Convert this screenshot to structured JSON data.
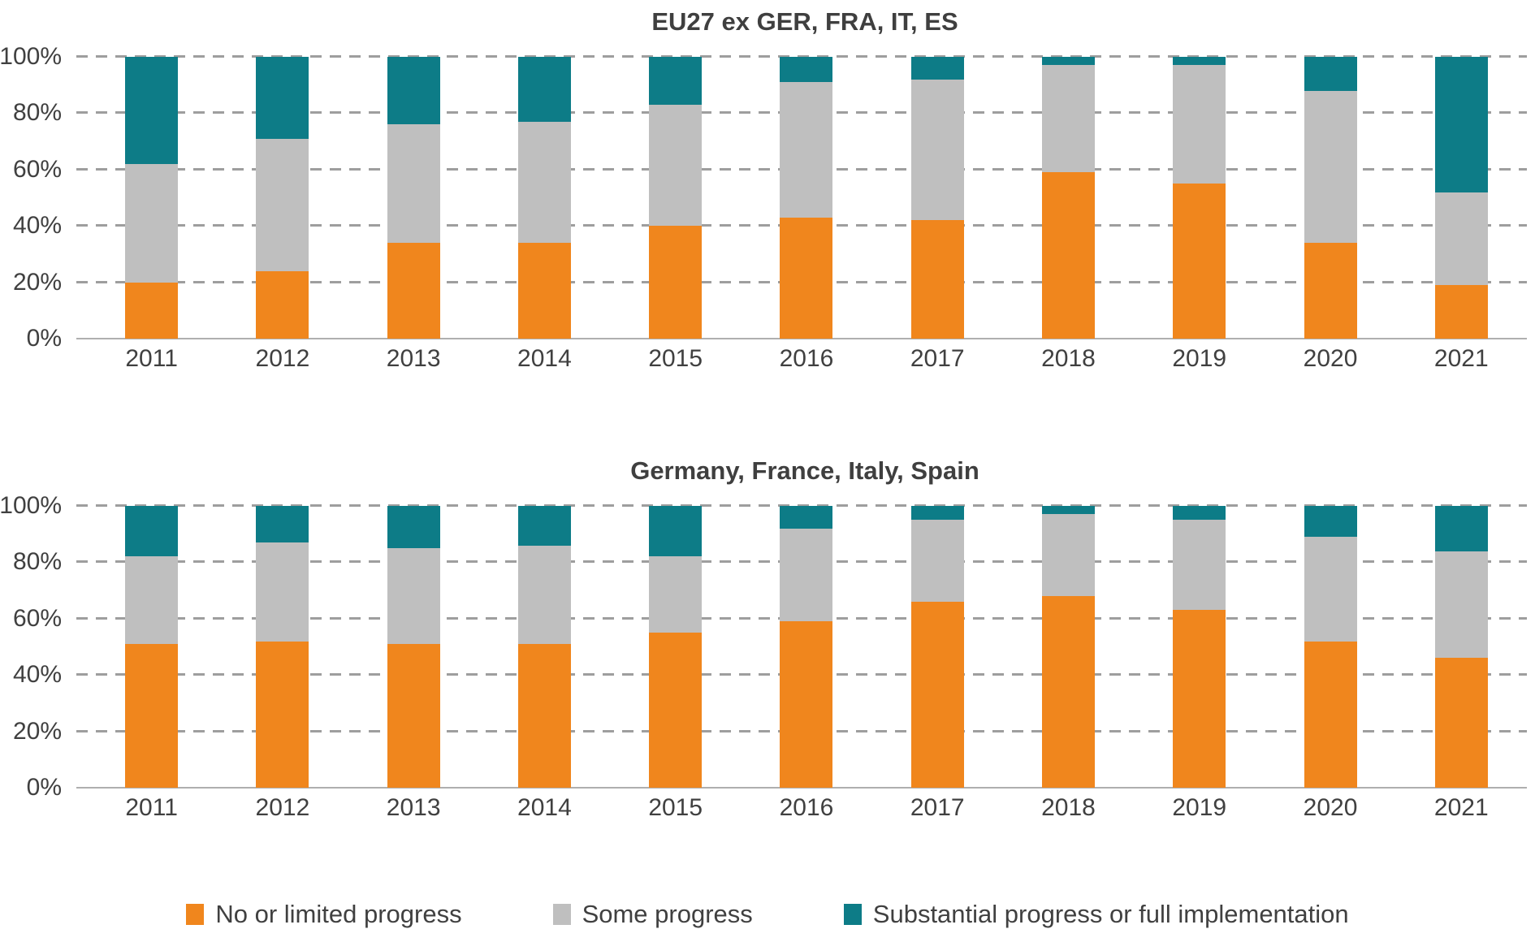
{
  "page": {
    "background": "#ffffff"
  },
  "colors": {
    "no_or_limited_progress": "#F0861D",
    "some_progress": "#BFBFBF",
    "substantial_progress": "#0D7C87",
    "gridline": "#9E9E9E",
    "axis_line": "#AFAFAF",
    "text": "#404040"
  },
  "chart_data": [
    {
      "type": "bar",
      "stacked": true,
      "title": "EU27 ex GER, FRA, IT, ES",
      "categories": [
        "2011",
        "2012",
        "2013",
        "2014",
        "2015",
        "2016",
        "2017",
        "2018",
        "2019",
        "2020",
        "2021"
      ],
      "ylim": [
        0,
        100
      ],
      "unit": "%",
      "grid": "dashed-horizontal",
      "legend_position": "bottom-shared",
      "y_ticks": [
        {
          "label": "0%",
          "value": 0
        },
        {
          "label": "20%",
          "value": 20
        },
        {
          "label": "40%",
          "value": 40
        },
        {
          "label": "60%",
          "value": 60
        },
        {
          "label": "80%",
          "value": 80
        },
        {
          "label": "100%",
          "value": 100
        }
      ],
      "series": [
        {
          "name": "No or limited progress",
          "color": "#F0861D",
          "values": [
            20,
            24,
            34,
            34,
            40,
            43,
            42,
            59,
            55,
            34,
            19
          ]
        },
        {
          "name": "Some progress",
          "color": "#BFBFBF",
          "values": [
            42,
            47,
            42,
            43,
            43,
            48,
            50,
            38,
            42,
            54,
            33
          ]
        },
        {
          "name": "Substantial progress or full implementation",
          "color": "#0D7C87",
          "values": [
            38,
            29,
            24,
            23,
            17,
            9,
            8,
            3,
            3,
            12,
            48
          ]
        }
      ]
    },
    {
      "type": "bar",
      "stacked": true,
      "title": "Germany, France, Italy, Spain",
      "categories": [
        "2011",
        "2012",
        "2013",
        "2014",
        "2015",
        "2016",
        "2017",
        "2018",
        "2019",
        "2020",
        "2021"
      ],
      "ylim": [
        0,
        100
      ],
      "unit": "%",
      "grid": "dashed-horizontal",
      "legend_position": "bottom-shared",
      "y_ticks": [
        {
          "label": "0%",
          "value": 0
        },
        {
          "label": "20%",
          "value": 20
        },
        {
          "label": "40%",
          "value": 40
        },
        {
          "label": "60%",
          "value": 60
        },
        {
          "label": "80%",
          "value": 80
        },
        {
          "label": "100%",
          "value": 100
        }
      ],
      "series": [
        {
          "name": "No or limited progress",
          "color": "#F0861D",
          "values": [
            51,
            52,
            51,
            51,
            55,
            59,
            66,
            68,
            63,
            52,
            46
          ]
        },
        {
          "name": "Some progress",
          "color": "#BFBFBF",
          "values": [
            31,
            35,
            34,
            35,
            27,
            33,
            29,
            29,
            32,
            37,
            38
          ]
        },
        {
          "name": "Substantial progress or full implementation",
          "color": "#0D7C87",
          "values": [
            18,
            13,
            15,
            14,
            18,
            8,
            5,
            3,
            5,
            11,
            16
          ]
        }
      ]
    }
  ],
  "legend": {
    "items": [
      {
        "label": "No or limited progress",
        "color": "#F0861D"
      },
      {
        "label": "Some progress",
        "color": "#BFBFBF"
      },
      {
        "label": "Substantial progress or full implementation",
        "color": "#0D7C87"
      }
    ]
  }
}
